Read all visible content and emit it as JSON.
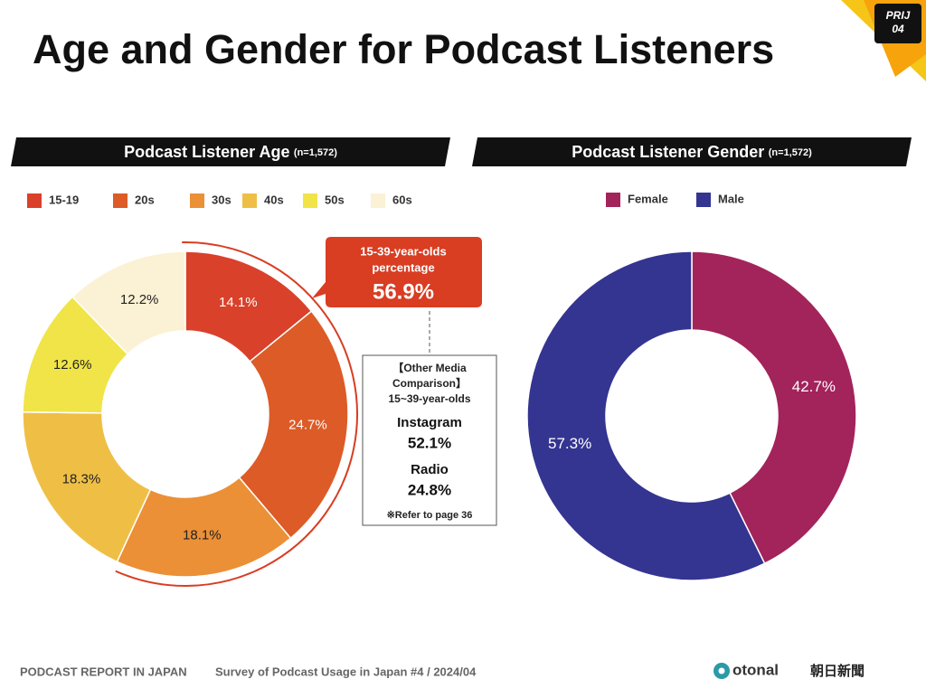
{
  "title": "Age and Gender for Podcast Listeners",
  "badge": [
    "PRIJ",
    "04"
  ],
  "callout": {
    "lines": [
      "15-39-year-olds",
      "percentage"
    ],
    "value_label": "56.9%"
  },
  "comparison": {
    "heading": [
      "【Other Media",
      "Comparison】",
      "15~39-year-olds"
    ],
    "items": [
      {
        "name": "Instagram",
        "value_label": "52.1%"
      },
      {
        "name": "Radio",
        "value_label": "24.8%"
      }
    ],
    "note": "※Refer to page 36"
  },
  "footer": {
    "report": "PODCAST REPORT IN JAPAN",
    "survey": "Survey of Podcast Usage in Japan #4 / 2024/04",
    "logo1": "otonal",
    "logo2": "朝日新聞"
  },
  "chart_data": [
    {
      "type": "donut",
      "title": "Podcast Listener Age",
      "subtitle": "(n=1,572)",
      "categories": [
        "15-19",
        "20s",
        "30s",
        "40s",
        "50s",
        "60s"
      ],
      "values": [
        14.1,
        24.7,
        18.1,
        18.3,
        12.6,
        12.2
      ],
      "value_labels": [
        "14.1%",
        "24.7%",
        "18.1%",
        "18.3%",
        "12.6%",
        "12.2%"
      ],
      "colors": [
        "#d9412a",
        "#dc5b27",
        "#eb9036",
        "#efbf45",
        "#f0e448",
        "#fbf1d4"
      ]
    },
    {
      "type": "donut",
      "title": "Podcast Listener Gender",
      "subtitle": "(n=1,572)",
      "categories": [
        "Female",
        "Male"
      ],
      "values": [
        42.7,
        57.3
      ],
      "value_labels": [
        "42.7%",
        "57.3%"
      ],
      "colors": [
        "#a3235b",
        "#343491"
      ]
    }
  ]
}
